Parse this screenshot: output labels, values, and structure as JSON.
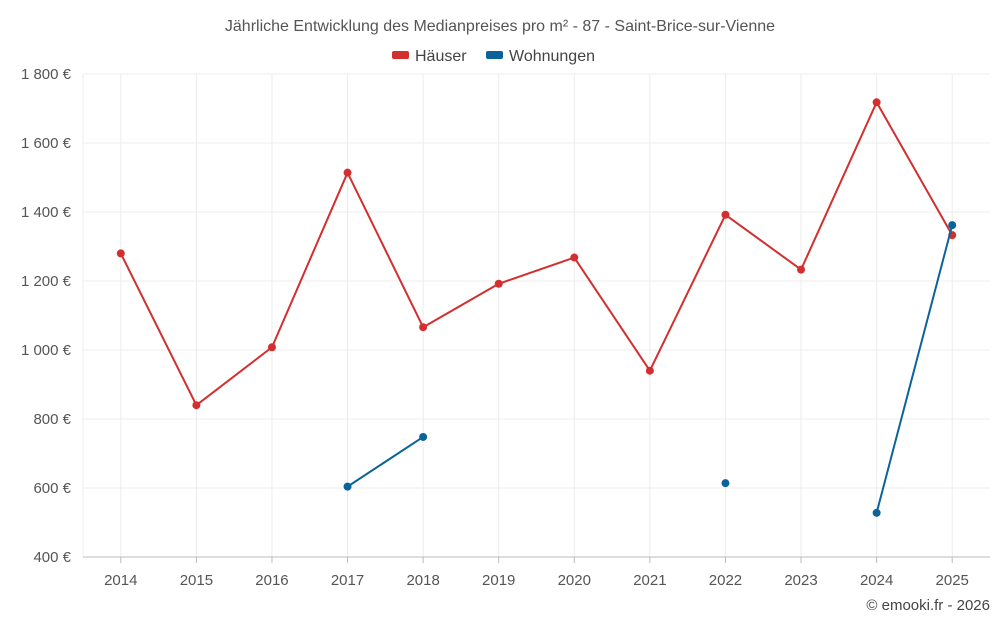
{
  "chart_data": {
    "type": "line",
    "title": "Jährliche Entwicklung des Medianpreises pro m² - 87 - Saint-Brice-sur-Vienne",
    "categories": [
      "2014",
      "2015",
      "2016",
      "2017",
      "2018",
      "2019",
      "2020",
      "2021",
      "2022",
      "2023",
      "2024",
      "2025"
    ],
    "series": [
      {
        "name": "Häuser",
        "color": "#d32f2f",
        "values": [
          1280,
          840,
          1008,
          1514,
          1066,
          1192,
          1268,
          940,
          1392,
          1233,
          1718,
          1333
        ]
      },
      {
        "name": "Wohnungen",
        "color": "#0b6499",
        "values": [
          null,
          null,
          null,
          604,
          748,
          null,
          null,
          null,
          614,
          null,
          528,
          1362
        ]
      }
    ],
    "yticks": [
      "1 800 €",
      "1 600 €",
      "1 400 €",
      "1 200 €",
      "1 000 €",
      "800 €",
      "600 €",
      "400 €"
    ],
    "ylim": [
      400,
      1800
    ],
    "ytick_values": [
      1800,
      1600,
      1400,
      1200,
      1000,
      800,
      600,
      400
    ],
    "xlabel": "",
    "ylabel": "",
    "grid": true,
    "legend_position": "top-center"
  },
  "credit": "© emooki.fr - 2026"
}
